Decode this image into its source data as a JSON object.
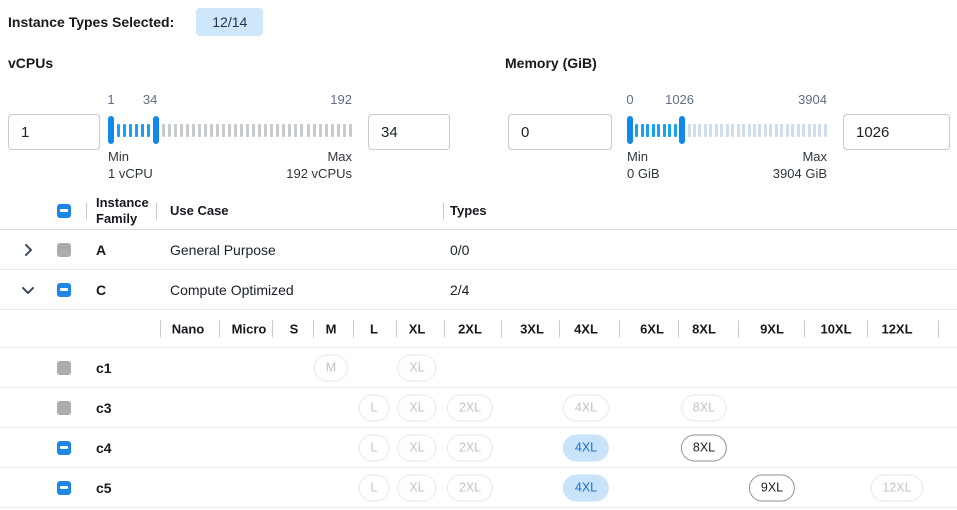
{
  "header": {
    "label": "Instance Types Selected:",
    "badge": "12/14"
  },
  "filters": [
    {
      "id": "vcpus",
      "title": "vCPUs",
      "low_input": "1",
      "high_input": "34",
      "scale_labels": {
        "low": "1",
        "mid": "34",
        "max": "192"
      },
      "min_label": "Min",
      "min_value": "1 vCPU",
      "max_label": "Max",
      "max_value": "192 vCPUs",
      "range": {
        "min": 1,
        "max": 192,
        "low": 1,
        "high": 34
      }
    },
    {
      "id": "memory",
      "title": "Memory (GiB)",
      "low_input": "0",
      "high_input": "1026",
      "scale_labels": {
        "low": "0",
        "mid": "1026",
        "max": "3904"
      },
      "min_label": "Min",
      "min_value": "0 GiB",
      "max_label": "Max",
      "max_value": "3904 GiB",
      "range": {
        "min": 0,
        "max": 3904,
        "low": 0,
        "high": 1026
      }
    }
  ],
  "table": {
    "columns": {
      "family": "Instance Family",
      "use_case": "Use Case",
      "types": "Types"
    },
    "family_rows": [
      {
        "expand": "collapsed",
        "checkbox": "disabled",
        "family": "A",
        "use_case": "General Purpose",
        "types": "0/0"
      },
      {
        "expand": "expanded",
        "checkbox": "indeterminate",
        "family": "C",
        "use_case": "Compute Optimized",
        "types": "2/4"
      }
    ],
    "size_columns": [
      "Nano",
      "Micro",
      "S",
      "M",
      "L",
      "XL",
      "2XL",
      "3XL",
      "4XL",
      "6XL",
      "8XL",
      "9XL",
      "10XL",
      "12XL"
    ],
    "instance_rows": [
      {
        "name": "c1",
        "checkbox": "disabled",
        "pills": [
          {
            "size": "M",
            "state": "disabled"
          },
          {
            "size": "XL",
            "state": "disabled"
          }
        ]
      },
      {
        "name": "c3",
        "checkbox": "disabled",
        "pills": [
          {
            "size": "L",
            "state": "disabled"
          },
          {
            "size": "XL",
            "state": "disabled"
          },
          {
            "size": "2XL",
            "state": "disabled"
          },
          {
            "size": "4XL",
            "state": "disabled"
          },
          {
            "size": "8XL",
            "state": "disabled"
          }
        ]
      },
      {
        "name": "c4",
        "checkbox": "indeterminate",
        "pills": [
          {
            "size": "L",
            "state": "disabled"
          },
          {
            "size": "XL",
            "state": "disabled"
          },
          {
            "size": "2XL",
            "state": "disabled"
          },
          {
            "size": "4XL",
            "state": "selected"
          },
          {
            "size": "8XL",
            "state": "available"
          }
        ]
      },
      {
        "name": "c5",
        "checkbox": "indeterminate",
        "pills": [
          {
            "size": "L",
            "state": "disabled"
          },
          {
            "size": "XL",
            "state": "disabled"
          },
          {
            "size": "2XL",
            "state": "disabled"
          },
          {
            "size": "4XL",
            "state": "selected"
          },
          {
            "size": "9XL",
            "state": "available"
          },
          {
            "size": "12XL",
            "state": "disabled"
          }
        ]
      }
    ]
  },
  "colors": {
    "accent_blue": "#1e87e5",
    "tick_active": "#18a0f2",
    "tick_handle": "#1089e8",
    "tick_inactive_vcpus": "#c7cacd",
    "tick_inactive_memory": "#cfddee",
    "badge_bg": "#cfe7fb",
    "selected_pill_bg": "#c9e3fb",
    "selected_pill_text": "#1b6fd3"
  }
}
